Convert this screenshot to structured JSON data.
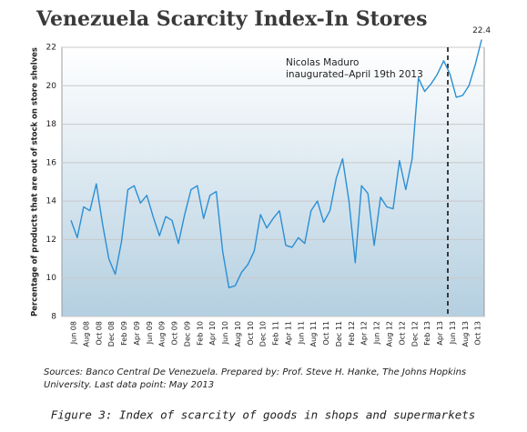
{
  "chart_data": {
    "type": "line",
    "title": "Venezuela Scarcity Index-In Stores",
    "y_label": "Percentage of products that are out of stock on store shelves",
    "categories": [
      "Jun 08",
      null,
      "Aug 08",
      null,
      "Oct 08",
      null,
      "Dec 08",
      null,
      "Feb 09",
      null,
      "Apr 09",
      null,
      "Jun 09",
      null,
      "Aug 09",
      null,
      "Oct 09",
      null,
      "Dec 09",
      null,
      "Feb 10",
      null,
      "Apr 10",
      null,
      "Jun 10",
      null,
      "Aug 10",
      null,
      "Oct 10",
      null,
      "Dec 10",
      null,
      "Feb 11",
      null,
      "Apr 11",
      null,
      "Jun 11",
      null,
      "Aug 11",
      null,
      "Oct 11",
      null,
      "Dec 11",
      null,
      "Feb 12",
      null,
      "Apr 12",
      null,
      "Jun 12",
      null,
      "Aug 12",
      null,
      "Oct 12",
      null,
      "Dec 12",
      null,
      "Feb 13",
      null,
      "Apr 13",
      null,
      "Jun 13",
      null,
      "Aug 13",
      null,
      "Oct 13",
      null
    ],
    "series": [
      {
        "name": "Scarcity Index",
        "color": "#2a8fd4",
        "values": [
          13.0,
          12.1,
          13.7,
          13.5,
          14.9,
          12.8,
          11.0,
          10.2,
          11.9,
          14.6,
          14.8,
          13.9,
          14.3,
          13.2,
          12.2,
          13.2,
          13.0,
          11.8,
          13.3,
          14.6,
          14.8,
          13.1,
          14.3,
          14.5,
          11.4,
          9.5,
          9.6,
          10.3,
          10.7,
          11.4,
          13.3,
          12.6,
          13.1,
          13.5,
          11.7,
          11.6,
          12.1,
          11.8,
          13.5,
          14.0,
          12.9,
          13.5,
          15.2,
          16.2,
          14.0,
          10.8,
          14.8,
          14.4,
          11.7,
          14.2,
          13.7,
          13.6,
          16.1,
          14.6,
          16.2,
          20.4,
          19.7,
          20.1,
          20.6,
          21.3,
          20.6,
          19.4,
          19.5,
          20.0,
          21.1,
          22.4
        ],
        "value_labels": {
          "65": "22.4"
        }
      }
    ],
    "ylim": [
      8,
      22
    ],
    "yticks": [
      8,
      10,
      12,
      14,
      16,
      18,
      20,
      22
    ],
    "grid": true,
    "annotation": [
      "Nicolas Maduro",
      "inaugurated–April 19th 2013"
    ],
    "source": [
      "Sources: Banco Central De Venezuela. Prepared by: Prof. Steve H. Hanke, The Johns Hopkins",
      "University. Last data point: May 2013"
    ],
    "caption": "Figure 3: Index of scarcity of goods in shops and supermarkets"
  }
}
